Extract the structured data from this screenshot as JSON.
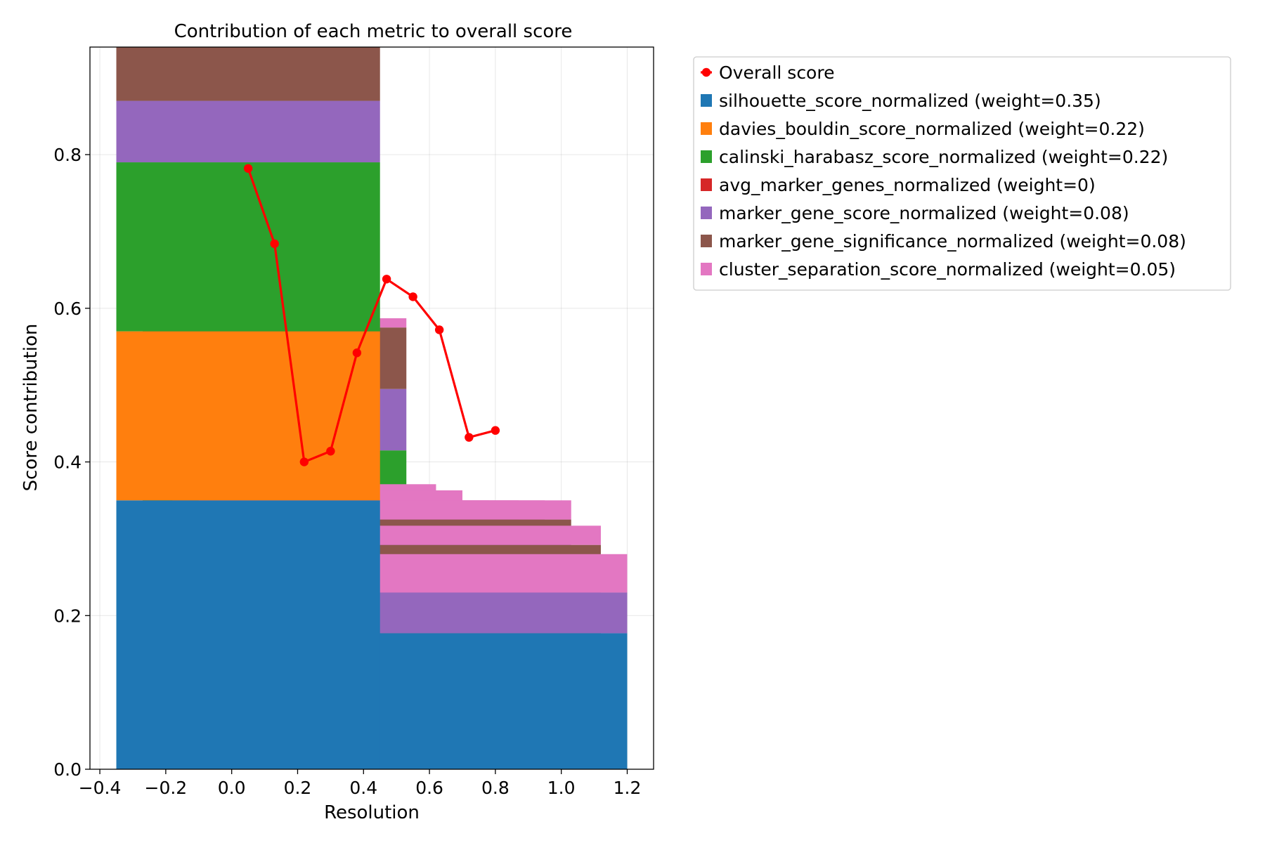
{
  "chart_data": {
    "type": "bar",
    "title": "Contribution of each metric to overall score",
    "xlabel": "Resolution",
    "ylabel": "Score contribution",
    "xlim": [
      -0.43,
      1.28
    ],
    "ylim": [
      0.0,
      0.94
    ],
    "xticks": [
      -0.4,
      -0.2,
      0.0,
      0.2,
      0.4,
      0.6,
      0.8,
      1.0,
      1.2
    ],
    "xtick_labels": [
      "−0.4",
      "−0.2",
      "0.0",
      "0.2",
      "0.4",
      "0.6",
      "0.8",
      "1.0",
      "1.2"
    ],
    "yticks": [
      0.0,
      0.2,
      0.4,
      0.6,
      0.8
    ],
    "ytick_labels": [
      "0.0",
      "0.2",
      "0.4",
      "0.6",
      "0.8"
    ],
    "grid": true,
    "legend_position": "outside-upper-right",
    "bar_width": 0.8,
    "resolutions": [
      0.05,
      0.13,
      0.22,
      0.3,
      0.38,
      0.47,
      0.55,
      0.63,
      0.72,
      0.8
    ],
    "series": [
      {
        "name": "silhouette_score_normalized (weight=0.35)",
        "color": "#1f77b4",
        "values": [
          0.35,
          0.097,
          0.0,
          0.0,
          0.0,
          0.0,
          0.0,
          0.0,
          0.15,
          0.177
        ]
      },
      {
        "name": "davies_bouldin_score_normalized (weight=0.22)",
        "color": "#ff7f0e",
        "values": [
          0.22,
          0.123,
          0.083,
          0.083,
          0.083,
          0.083,
          0.083,
          0.083,
          0.015,
          0.0
        ]
      },
      {
        "name": "calinski_harabasz_score_normalized (weight=0.22)",
        "color": "#2ca02c",
        "values": [
          0.22,
          0.195,
          0.132,
          0.132,
          0.132,
          0.132,
          0.132,
          0.132,
          0.017,
          0.0
        ]
      },
      {
        "name": "avg_marker_genes_normalized (weight=0)",
        "color": "#d62728",
        "values": [
          0,
          0,
          0,
          0,
          0,
          0,
          0,
          0,
          0,
          0
        ]
      },
      {
        "name": "marker_gene_score_normalized (weight=0.08)",
        "color": "#9467bd",
        "values": [
          0.08,
          0.08,
          0.08,
          0.08,
          0.08,
          0.08,
          0.08,
          0.08,
          0.08,
          0.053
        ]
      },
      {
        "name": "marker_gene_significance_normalized (weight=0.08)",
        "color": "#8c564b",
        "values": [
          0.075,
          0.08,
          0.055,
          0.045,
          0.03,
          0.03,
          0.03,
          0.03,
          0.03,
          0.0
        ]
      },
      {
        "name": "cluster_separation_score_normalized (weight=0.05)",
        "color": "#e377c2",
        "values": [
          0.0,
          0.012,
          0.021,
          0.023,
          0.025,
          0.025,
          0.025,
          0.025,
          0.025,
          0.05
        ]
      }
    ],
    "draw_order": [
      1,
      2,
      4,
      3,
      6,
      5,
      7,
      8,
      9,
      0
    ],
    "line": {
      "name": "Overall score",
      "color": "#ff0000",
      "x": [
        0.05,
        0.13,
        0.22,
        0.3,
        0.38,
        0.47,
        0.55,
        0.63,
        0.72,
        0.8
      ],
      "y": [
        0.782,
        0.684,
        0.4,
        0.414,
        0.542,
        0.638,
        0.615,
        0.572,
        0.432,
        0.441
      ]
    }
  }
}
